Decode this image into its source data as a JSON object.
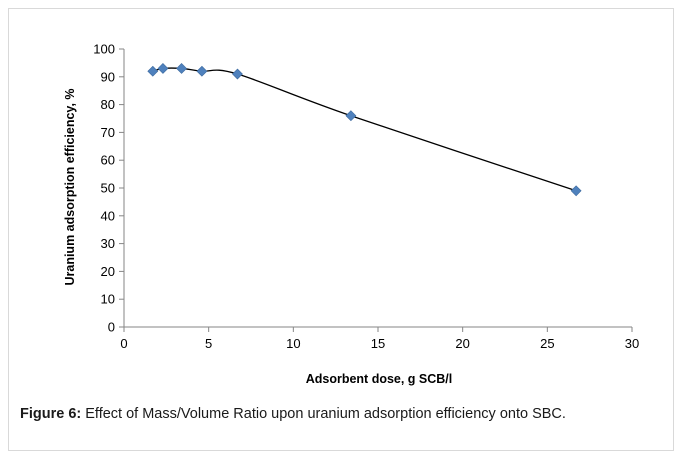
{
  "chart_data": {
    "type": "line",
    "xlabel": "Adsorbent dose, g SCB/l",
    "ylabel": "Uranium adsorption efficiency, %",
    "xlim": [
      0,
      30
    ],
    "ylim": [
      0,
      100
    ],
    "xticks": [
      "0",
      "5",
      "10",
      "15",
      "20",
      "25",
      "30"
    ],
    "yticks": [
      "0",
      "10",
      "20",
      "30",
      "40",
      "50",
      "60",
      "70",
      "80",
      "90",
      "100"
    ],
    "x": [
      1.7,
      2.3,
      3.4,
      4.6,
      6.7,
      13.4,
      26.7
    ],
    "y": [
      92,
      93,
      93,
      92,
      91,
      76,
      49
    ],
    "marker_color": "#4f81bd",
    "line_color": "#000000",
    "grid": false,
    "legend": "none"
  },
  "caption": {
    "label": "Figure 6:",
    "text": " Effect of Mass/Volume Ratio upon uranium adsorption efficiency onto SBC."
  }
}
